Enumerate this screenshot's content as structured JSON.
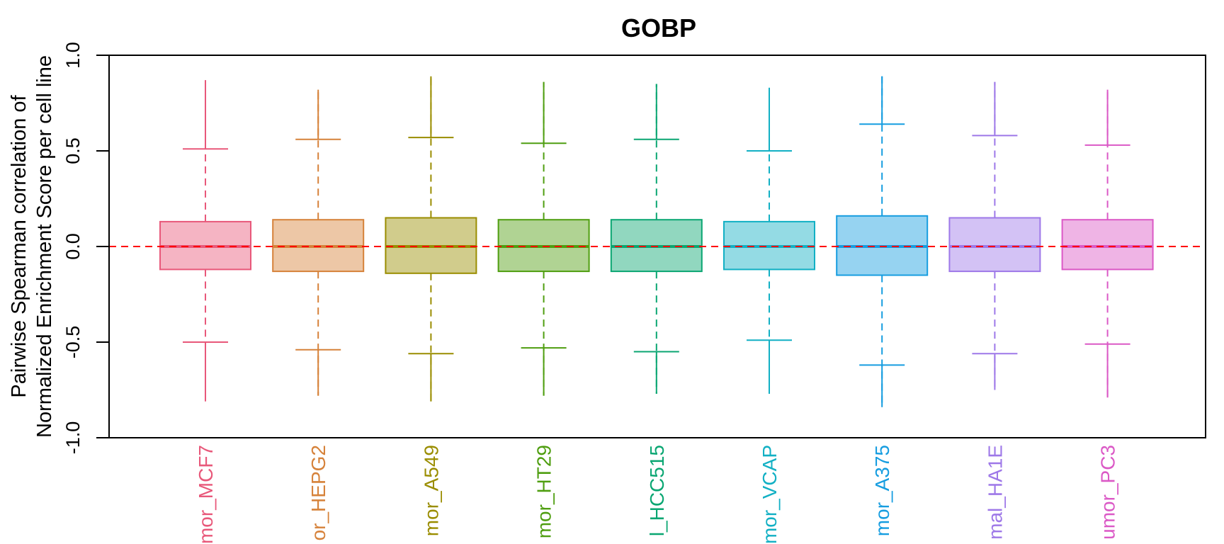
{
  "chart_data": {
    "type": "box",
    "title": "GOBP",
    "ylabel_line1": "Pairwise Spearman correlation of",
    "ylabel_line2": "Normalized Enrichment Score per cell line",
    "ylim": [
      -1.0,
      1.0
    ],
    "yticks": [
      -1.0,
      -0.5,
      0.0,
      0.5,
      1.0
    ],
    "ytick_labels": [
      "-1.0",
      "-0.5",
      "0.0",
      "0.5",
      "1.0"
    ],
    "reference_line": {
      "y": 0.0,
      "style": "dashed",
      "color": "#ff0000"
    },
    "grid": false,
    "legend": "none",
    "categories": [
      "mor_MCF7",
      "or_HEPG2",
      "mor_A549",
      "mor_HT29",
      "l_HCC515",
      "mor_VCAP",
      "mor_A375",
      "mal_HA1E",
      "umor_PC3"
    ],
    "colors": [
      "#e8587a",
      "#d6823a",
      "#9a8d00",
      "#4f9e10",
      "#0aa672",
      "#12b0c4",
      "#169de0",
      "#9e78e8",
      "#db59c6"
    ],
    "boxes": [
      {
        "category": "mor_MCF7",
        "min": -0.81,
        "whisker_low": -0.5,
        "q1": -0.12,
        "median": 0.0,
        "q3": 0.13,
        "whisker_high": 0.51,
        "max": 0.87
      },
      {
        "category": "or_HEPG2",
        "min": -0.78,
        "whisker_low": -0.54,
        "q1": -0.13,
        "median": 0.0,
        "q3": 0.14,
        "whisker_high": 0.56,
        "max": 0.82
      },
      {
        "category": "mor_A549",
        "min": -0.81,
        "whisker_low": -0.56,
        "q1": -0.14,
        "median": 0.0,
        "q3": 0.15,
        "whisker_high": 0.57,
        "max": 0.89
      },
      {
        "category": "mor_HT29",
        "min": -0.78,
        "whisker_low": -0.53,
        "q1": -0.13,
        "median": 0.0,
        "q3": 0.14,
        "whisker_high": 0.54,
        "max": 0.86
      },
      {
        "category": "l_HCC515",
        "min": -0.77,
        "whisker_low": -0.55,
        "q1": -0.13,
        "median": 0.0,
        "q3": 0.14,
        "whisker_high": 0.56,
        "max": 0.85
      },
      {
        "category": "mor_VCAP",
        "min": -0.77,
        "whisker_low": -0.49,
        "q1": -0.12,
        "median": 0.0,
        "q3": 0.13,
        "whisker_high": 0.5,
        "max": 0.83
      },
      {
        "category": "mor_A375",
        "min": -0.84,
        "whisker_low": -0.62,
        "q1": -0.15,
        "median": 0.0,
        "q3": 0.16,
        "whisker_high": 0.64,
        "max": 0.89
      },
      {
        "category": "mal_HA1E",
        "min": -0.75,
        "whisker_low": -0.56,
        "q1": -0.13,
        "median": 0.0,
        "q3": 0.15,
        "whisker_high": 0.58,
        "max": 0.86
      },
      {
        "category": "umor_PC3",
        "min": -0.79,
        "whisker_low": -0.51,
        "q1": -0.12,
        "median": 0.0,
        "q3": 0.14,
        "whisker_high": 0.53,
        "max": 0.82
      }
    ]
  }
}
